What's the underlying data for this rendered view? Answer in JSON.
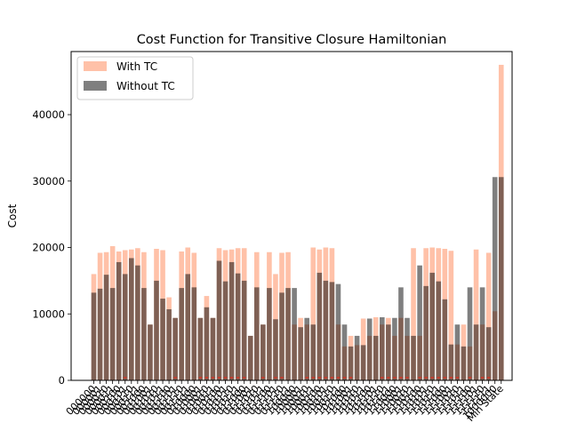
{
  "chart_data": {
    "type": "bar",
    "title": "Cost Function for Transitive Closure Hamiltonian",
    "xlabel": "",
    "ylabel": "Cost",
    "ylim": [
      0,
      49500
    ],
    "yticks": [
      0,
      10000,
      20000,
      30000,
      40000
    ],
    "ytick_labels": [
      "0",
      "10000",
      "20000",
      "30000",
      "40000"
    ],
    "grid": false,
    "legend_position": "top-left",
    "last_category_label": "Min State",
    "series": [
      {
        "name": "With TC",
        "color": "#ffa07a",
        "alpha": 0.65,
        "values": [
          16000,
          19200,
          19300,
          20200,
          19400,
          19600,
          19700,
          19900,
          19300,
          8400,
          19800,
          19600,
          12500,
          9400,
          19400,
          20000,
          19200,
          9400,
          12700,
          9400,
          19900,
          19600,
          19700,
          19900,
          19900,
          6700,
          19300,
          8400,
          19300,
          16000,
          19200,
          19300,
          8400,
          9400,
          8400,
          20000,
          19700,
          20000,
          19900,
          8400,
          5100,
          6700,
          5300,
          9300,
          6700,
          9500,
          8400,
          9400,
          6700,
          9400,
          6700,
          19900,
          6700,
          19900,
          20000,
          19900,
          19800,
          19500,
          5400,
          8400,
          5100,
          19700,
          8400,
          19200,
          10400,
          47500
        ]
      },
      {
        "name": "Without TC",
        "color": "#000000",
        "alpha": 0.5,
        "values": [
          13200,
          13800,
          15900,
          13900,
          17800,
          16000,
          18400,
          17300,
          13900,
          8400,
          15000,
          12300,
          10700,
          9400,
          13900,
          16000,
          14000,
          9400,
          11000,
          9400,
          18000,
          14900,
          17800,
          16100,
          15000,
          6700,
          14000,
          8400,
          13900,
          9200,
          13200,
          13900,
          13900,
          8000,
          9400,
          8400,
          16200,
          15000,
          14800,
          14500,
          8400,
          5100,
          6700,
          5300,
          9300,
          6700,
          9500,
          8400,
          9400,
          14000,
          9400,
          6700,
          17300,
          14200,
          16200,
          14900,
          12200,
          5400,
          8400,
          5100,
          14000,
          8400,
          14000,
          8000,
          30600,
          30600
        ]
      }
    ]
  }
}
